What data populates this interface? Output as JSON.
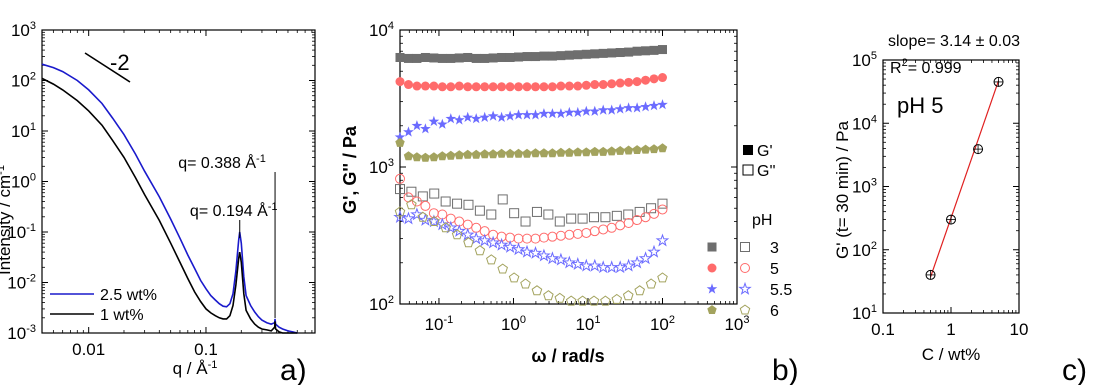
{
  "chart_data": [
    {
      "panel_label": "a)",
      "type": "line",
      "xlabel_main": "q / Å",
      "xlabel_sup": "-1",
      "ylabel_main": "Intensity / cm",
      "ylabel_sup": "-1",
      "x_scale": "log",
      "y_scale": "log",
      "xlim": [
        0.004,
        0.85
      ],
      "ylim": [
        0.001,
        1000
      ],
      "xticks": [
        {
          "v": 0.01,
          "label": "0.01"
        },
        {
          "v": 0.1,
          "label": "0.1"
        }
      ],
      "yticks": [
        {
          "v": 0.001,
          "base": "10",
          "exp": "-3"
        },
        {
          "v": 0.01,
          "base": "10",
          "exp": "-2"
        },
        {
          "v": 0.1,
          "base": "10",
          "exp": "-1"
        },
        {
          "v": 1,
          "base": "10",
          "exp": "0"
        },
        {
          "v": 10,
          "base": "10",
          "exp": "1"
        },
        {
          "v": 100,
          "base": "10",
          "exp": "2"
        },
        {
          "v": 1000,
          "base": "10",
          "exp": "3"
        }
      ],
      "slope_label": "-2",
      "peak_labels": [
        {
          "text": "q= 0.194 Å",
          "sup": "-1",
          "q": 0.194
        },
        {
          "text": "q= 0.388 Å",
          "sup": "-1",
          "q": 0.388
        }
      ],
      "series": [
        {
          "name": "2.5 wt%",
          "color": "#1a1acc",
          "x": [
            0.004,
            0.005,
            0.006,
            0.008,
            0.01,
            0.013,
            0.016,
            0.02,
            0.025,
            0.03,
            0.04,
            0.05,
            0.06,
            0.07,
            0.08,
            0.09,
            0.1,
            0.11,
            0.12,
            0.13,
            0.14,
            0.15,
            0.16,
            0.17,
            0.18,
            0.19,
            0.194,
            0.2,
            0.21,
            0.22,
            0.24,
            0.26,
            0.28,
            0.3,
            0.33,
            0.36,
            0.385,
            0.388,
            0.392,
            0.42,
            0.45,
            0.5,
            0.55,
            0.6
          ],
          "y": [
            210,
            180,
            150,
            100,
            65,
            35,
            18,
            8.5,
            3.5,
            1.6,
            0.5,
            0.18,
            0.075,
            0.035,
            0.019,
            0.011,
            0.0075,
            0.0055,
            0.0045,
            0.0038,
            0.0034,
            0.0033,
            0.0038,
            0.006,
            0.017,
            0.07,
            0.1,
            0.06,
            0.013,
            0.0055,
            0.0035,
            0.0026,
            0.0021,
            0.0018,
            0.0016,
            0.0015,
            0.0016,
            0.0019,
            0.0015,
            0.0013,
            0.0012,
            0.0011,
            0.00105,
            0.001
          ]
        },
        {
          "name": "1 wt%",
          "color": "#000000",
          "x": [
            0.004,
            0.005,
            0.006,
            0.008,
            0.01,
            0.013,
            0.016,
            0.02,
            0.025,
            0.03,
            0.04,
            0.05,
            0.06,
            0.07,
            0.08,
            0.09,
            0.1,
            0.11,
            0.12,
            0.13,
            0.14,
            0.15,
            0.16,
            0.17,
            0.18,
            0.19,
            0.194,
            0.2,
            0.21,
            0.22,
            0.24,
            0.26,
            0.28,
            0.3,
            0.33,
            0.36,
            0.385,
            0.388,
            0.392,
            0.42,
            0.45,
            0.5,
            0.55,
            0.6
          ],
          "y": [
            110,
            85,
            65,
            40,
            25,
            13,
            6.5,
            3.0,
            1.2,
            0.55,
            0.17,
            0.06,
            0.025,
            0.012,
            0.0065,
            0.0042,
            0.003,
            0.0025,
            0.0022,
            0.002,
            0.0019,
            0.0019,
            0.0022,
            0.0035,
            0.009,
            0.03,
            0.04,
            0.025,
            0.006,
            0.0028,
            0.0019,
            0.0015,
            0.0013,
            0.0012,
            0.00115,
            0.0011,
            0.0013,
            0.0017,
            0.0012,
            0.00105,
            0.001,
            0.001,
            0.001,
            0.001
          ]
        }
      ]
    },
    {
      "panel_label": "b)",
      "type": "scatter",
      "xlabel": "ω / rad/s",
      "ylabel": "G', G'' / Pa",
      "x_scale": "log",
      "y_scale": "log",
      "xlim": [
        0.03,
        1000
      ],
      "ylim": [
        100,
        10000
      ],
      "xticks": [
        {
          "v": 0.1,
          "base": "10",
          "exp": "-1"
        },
        {
          "v": 1,
          "base": "10",
          "exp": "0"
        },
        {
          "v": 10,
          "base": "10",
          "exp": "1"
        },
        {
          "v": 100,
          "base": "10",
          "exp": "2"
        },
        {
          "v": 1000,
          "base": "10",
          "exp": "3"
        }
      ],
      "yticks": [
        {
          "v": 100,
          "base": "10",
          "exp": "2"
        },
        {
          "v": 1000,
          "base": "10",
          "exp": "3"
        },
        {
          "v": 10000,
          "base": "10",
          "exp": "4"
        }
      ],
      "legend_modulus": [
        {
          "symbol": "filled-square",
          "label": "G'"
        },
        {
          "symbol": "open-square",
          "label": "G''"
        }
      ],
      "legend_title": "pH",
      "series": [
        {
          "name": "3",
          "color": "#6e6e6e",
          "marker": "square",
          "Gp": {
            "x_min": 0.03,
            "x_max": 100,
            "n": 32,
            "y": [
              6300,
              6200,
              6200,
              6300,
              6250,
              6200,
              6200,
              6250,
              6300,
              6200,
              6200,
              6250,
              6300,
              6300,
              6350,
              6400,
              6400,
              6450,
              6450,
              6500,
              6550,
              6600,
              6650,
              6700,
              6750,
              6800,
              6850,
              6900,
              7000,
              7050,
              7100,
              7200
            ]
          },
          "Gpp": {
            "x_min": 0.03,
            "x_max": 100,
            "n": 24,
            "y": [
              690,
              660,
              610,
              640,
              560,
              540,
              530,
              480,
              450,
              580,
              460,
              400,
              470,
              450,
              400,
              420,
              420,
              430,
              430,
              440,
              450,
              470,
              500,
              540
            ]
          }
        },
        {
          "name": "5",
          "color": "#ff6b6b",
          "marker": "circle",
          "Gp": {
            "x_min": 0.03,
            "x_max": 100,
            "n": 32,
            "y": [
              4200,
              4000,
              3900,
              3900,
              3900,
              3850,
              3850,
              3900,
              3850,
              3850,
              3850,
              3850,
              3850,
              3850,
              3850,
              3850,
              3850,
              3850,
              3850,
              3900,
              3900,
              3900,
              3950,
              4000,
              4000,
              4050,
              4100,
              4150,
              4200,
              4300,
              4400,
              4500
            ]
          },
          "Gpp": {
            "x_min": 0.03,
            "x_max": 100,
            "n": 32,
            "y": [
              820,
              600,
              560,
              520,
              460,
              450,
              420,
              400,
              380,
              360,
              340,
              320,
              310,
              305,
              300,
              300,
              300,
              305,
              310,
              315,
              320,
              325,
              330,
              340,
              350,
              360,
              375,
              390,
              410,
              430,
              455,
              490
            ]
          }
        },
        {
          "name": "5.5",
          "color": "#6b6bff",
          "marker": "star",
          "Gp": {
            "x_min": 0.03,
            "x_max": 100,
            "n": 32,
            "y": [
              1650,
              1800,
              2000,
              1900,
              2150,
              2050,
              2250,
              2200,
              2300,
              2250,
              2300,
              2350,
              2300,
              2350,
              2400,
              2400,
              2400,
              2450,
              2450,
              2450,
              2500,
              2500,
              2550,
              2550,
              2600,
              2600,
              2650,
              2700,
              2700,
              2750,
              2800,
              2850
            ]
          },
          "Gpp": {
            "x_min": 0.03,
            "x_max": 100,
            "n": 32,
            "y": [
              430,
              420,
              450,
              410,
              400,
              380,
              360,
              340,
              320,
              300,
              290,
              280,
              270,
              260,
              250,
              240,
              235,
              225,
              215,
              210,
              200,
              195,
              190,
              190,
              185,
              185,
              185,
              190,
              200,
              215,
              240,
              290
            ]
          }
        },
        {
          "name": "6",
          "color": "#a3a35e",
          "marker": "pentagon",
          "Gp": {
            "x_min": 0.03,
            "x_max": 100,
            "n": 32,
            "y": [
              1500,
              1200,
              1180,
              1170,
              1180,
              1200,
              1210,
              1220,
              1230,
              1230,
              1240,
              1240,
              1250,
              1250,
              1250,
              1250,
              1260,
              1260,
              1260,
              1270,
              1270,
              1280,
              1280,
              1290,
              1290,
              1300,
              1310,
              1320,
              1330,
              1340,
              1350,
              1370
            ]
          },
          "Gpp": {
            "x_min": 0.03,
            "x_max": 100,
            "n": 24,
            "y": [
              470,
              530,
              430,
              400,
              360,
              320,
              280,
              245,
              210,
              180,
              155,
              140,
              125,
              115,
              110,
              105,
              105,
              105,
              105,
              108,
              115,
              125,
              140,
              155
            ]
          }
        }
      ]
    },
    {
      "panel_label": "c)",
      "type": "scatter",
      "xlabel": "C / wt%",
      "ylabel": "G' (t= 30 min) / Pa",
      "x_scale": "log",
      "y_scale": "log",
      "xlim": [
        0.1,
        10
      ],
      "ylim": [
        10,
        100000
      ],
      "xticks": [
        {
          "v": 0.1,
          "label": "0.1"
        },
        {
          "v": 1,
          "label": "1"
        },
        {
          "v": 10,
          "label": "10"
        }
      ],
      "yticks": [
        {
          "v": 10,
          "base": "10",
          "exp": "1"
        },
        {
          "v": 100,
          "base": "10",
          "exp": "2"
        },
        {
          "v": 1000,
          "base": "10",
          "exp": "3"
        },
        {
          "v": 10000,
          "base": "10",
          "exp": "4"
        },
        {
          "v": 100000,
          "base": "10",
          "exp": "5"
        }
      ],
      "annotation_slope": "slope= 3.14 ± 0.03",
      "annotation_r2_main": "R",
      "annotation_r2_sup": "2",
      "annotation_r2_rest": "= 0.999",
      "annotation_ph": "pH 5",
      "points": {
        "x": [
          0.5,
          1,
          2.5,
          5
        ],
        "y": [
          40,
          300,
          3900,
          45000
        ]
      },
      "fit": {
        "x": [
          0.5,
          5
        ],
        "y": [
          37,
          47000
        ],
        "color": "#e02020"
      }
    }
  ]
}
